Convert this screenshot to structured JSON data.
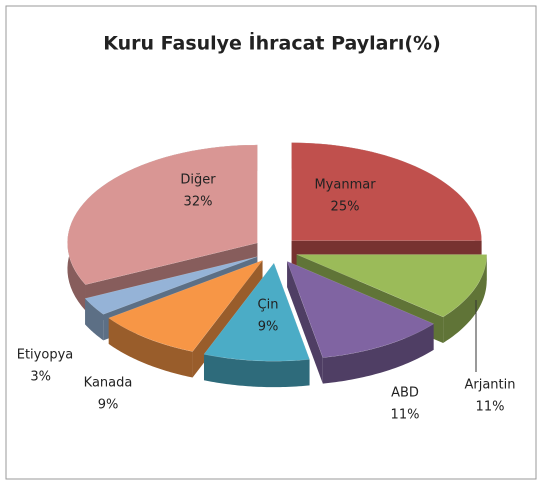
{
  "chart_data": {
    "type": "pie",
    "title": "Kuru Fasulye İhracat Payları(%)",
    "categories": [
      "Myanmar",
      "Arjantin",
      "ABD",
      "Çin",
      "Kanada",
      "Etiyopya",
      "Diğer"
    ],
    "values": [
      25,
      11,
      11,
      9,
      9,
      3,
      32
    ],
    "value_labels": [
      "25%",
      "11%",
      "11%",
      "9%",
      "9%",
      "3%",
      "32%"
    ],
    "colors": [
      "#c0504d",
      "#9bbb59",
      "#8064a2",
      "#4bacc6",
      "#f79646",
      "#95b3d7",
      "#d99694"
    ]
  }
}
